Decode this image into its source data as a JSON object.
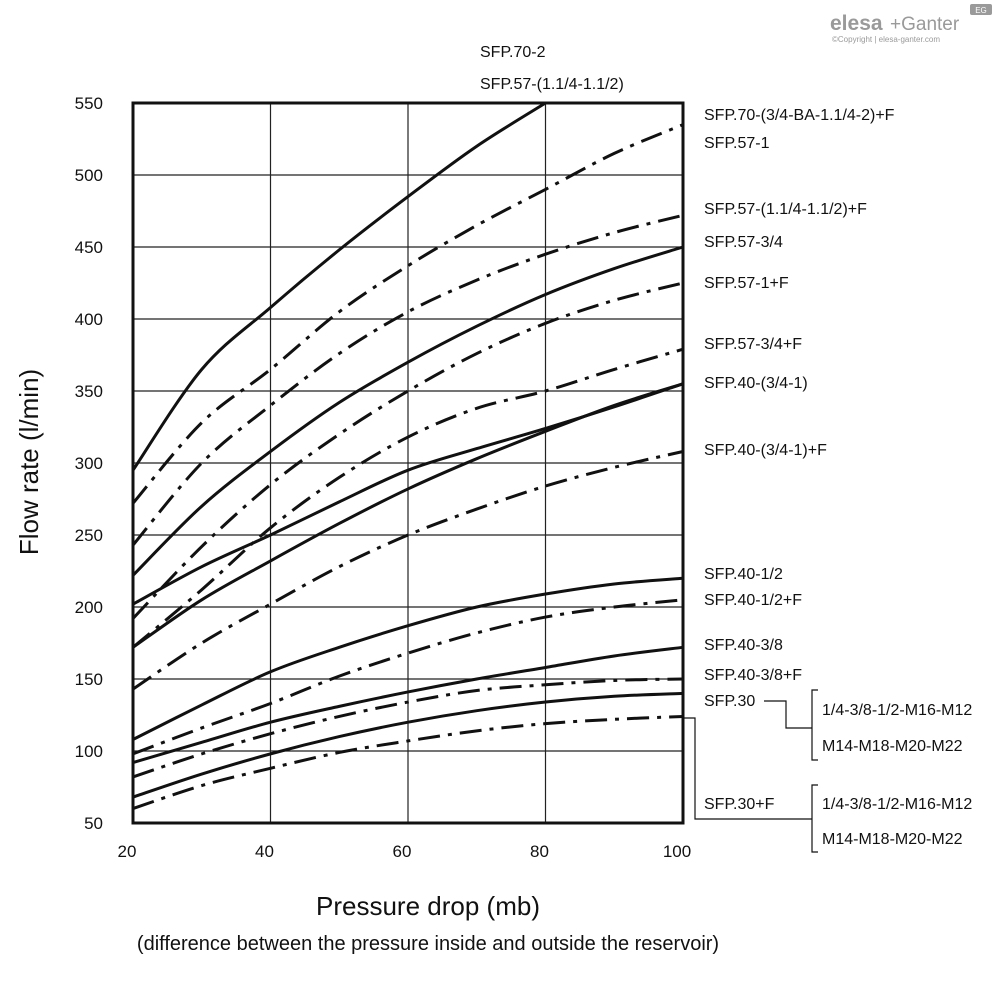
{
  "brand": {
    "name_left": "elesa",
    "name_right": "+Ganter",
    "copyright": "©Copyright | elesa-ganter.com",
    "badge": "EG"
  },
  "chart_data": {
    "type": "line",
    "xlabel": "Pressure drop (mb)",
    "xlabel_note": "(difference between the pressure inside and outside the reservoir)",
    "ylabel": "Flow rate (l/min)",
    "xlim": [
      20,
      100
    ],
    "ylim": [
      50,
      550
    ],
    "x_ticks": [
      20,
      40,
      60,
      80,
      100
    ],
    "y_ticks": [
      50,
      100,
      150,
      200,
      250,
      300,
      350,
      400,
      450,
      500,
      550
    ],
    "grid": true,
    "top_labels": [
      "SFP.70-2",
      "SFP.57-(1.1/4-1.1/2)"
    ],
    "series": [
      {
        "name": "SFP.70-2",
        "style": "solid",
        "x": [
          20,
          30,
          40,
          50,
          60,
          70,
          80
        ],
        "y": [
          295,
          365,
          408,
          448,
          485,
          520,
          550
        ]
      },
      {
        "name": "SFP.70-(3/4-BA-1.1/4-2)+F",
        "style": "dashdot",
        "x": [
          20,
          30,
          40,
          50,
          60,
          70,
          80,
          90,
          100
        ],
        "y": [
          272,
          328,
          365,
          405,
          437,
          465,
          490,
          515,
          535
        ]
      },
      {
        "name": "SFP.57-(1.1/4-1.1/2)+F",
        "style": "dashdot",
        "x": [
          20,
          30,
          40,
          50,
          60,
          70,
          80,
          90,
          100
        ],
        "y": [
          243,
          300,
          340,
          376,
          405,
          427,
          445,
          460,
          472
        ]
      },
      {
        "name": "SFP.57-1",
        "style": "solid",
        "x": [
          20,
          30,
          40,
          50,
          60,
          70,
          80,
          90,
          100
        ],
        "y": [
          222,
          270,
          308,
          342,
          370,
          395,
          417,
          435,
          450
        ]
      },
      {
        "name": "SFP.57-1+F",
        "style": "dashdot",
        "x": [
          20,
          30,
          40,
          50,
          60,
          70,
          80,
          90,
          100
        ],
        "y": [
          192,
          242,
          285,
          320,
          350,
          376,
          397,
          413,
          425
        ]
      },
      {
        "name": "SFP.57-3/4",
        "style": "solid",
        "x": [
          20,
          30,
          40,
          50,
          60,
          70,
          80,
          90,
          100
        ],
        "y": [
          202,
          228,
          250,
          273,
          295,
          310,
          324,
          339,
          355
        ]
      },
      {
        "name": "SFP.57-3/4+F",
        "style": "dashdot",
        "x": [
          20,
          30,
          40,
          50,
          60,
          70,
          80,
          90,
          100
        ],
        "y": [
          172,
          212,
          255,
          290,
          318,
          338,
          350,
          365,
          379
        ]
      },
      {
        "name": "SFP.40-(3/4-1)",
        "style": "solid",
        "x": [
          20,
          30,
          40,
          50,
          60,
          70,
          80,
          90,
          100
        ],
        "y": [
          172,
          205,
          232,
          258,
          282,
          303,
          322,
          340,
          355
        ]
      },
      {
        "name": "SFP.40-(3/4-1)+F",
        "style": "dashdot",
        "x": [
          20,
          30,
          40,
          50,
          60,
          70,
          80,
          90,
          100
        ],
        "y": [
          143,
          175,
          202,
          228,
          250,
          268,
          284,
          297,
          308
        ]
      },
      {
        "name": "SFP.40-1/2",
        "style": "solid",
        "x": [
          20,
          30,
          40,
          50,
          60,
          70,
          80,
          90,
          100
        ],
        "y": [
          108,
          132,
          155,
          172,
          187,
          200,
          209,
          216,
          220
        ]
      },
      {
        "name": "SFP.40-1/2+F",
        "style": "dashdot",
        "x": [
          20,
          30,
          40,
          50,
          60,
          70,
          80,
          90,
          100
        ],
        "y": [
          98,
          116,
          133,
          152,
          168,
          182,
          193,
          200,
          205
        ]
      },
      {
        "name": "SFP.40-3/8",
        "style": "solid",
        "x": [
          20,
          30,
          40,
          50,
          60,
          70,
          80,
          90,
          100
        ],
        "y": [
          92,
          106,
          120,
          131,
          141,
          150,
          158,
          166,
          172
        ]
      },
      {
        "name": "SFP.40-3/8+F",
        "style": "dashdot",
        "x": [
          20,
          30,
          40,
          50,
          60,
          70,
          80,
          90,
          100
        ],
        "y": [
          82,
          98,
          112,
          124,
          134,
          142,
          146,
          149,
          150
        ]
      },
      {
        "name": "SFP.30 1/4-3/8-1/2-M16-M12",
        "style": "solid",
        "x": [
          20,
          30,
          40,
          50,
          60,
          70,
          80,
          90,
          100
        ],
        "y": [
          68,
          84,
          98,
          110,
          120,
          128,
          134,
          138,
          140
        ]
      },
      {
        "name": "SFP.30+F 1/4-3/8-1/2-M16-M12",
        "style": "dashdot",
        "x": [
          20,
          30,
          40,
          50,
          60,
          70,
          80,
          90,
          100
        ],
        "y": [
          60,
          76,
          88,
          99,
          107,
          114,
          119,
          122,
          124
        ]
      }
    ],
    "right_labels": [
      "SFP.70-(3/4-BA-1.1/4-2)+F",
      "SFP.57-1",
      "SFP.57-(1.1/4-1.1/2)+F",
      "SFP.57-3/4",
      "SFP.57-1+F",
      "SFP.57-3/4+F",
      "SFP.40-(3/4-1)",
      "SFP.40-(3/4-1)+F",
      "SFP.40-1/2",
      "SFP.40-1/2+F",
      "SFP.40-3/8",
      "SFP.40-3/8+F",
      "SFP.30",
      "SFP.30+F"
    ],
    "group_labels": {
      "sfp30": [
        "1/4-3/8-1/2-M16-M12",
        "M14-M18-M20-M22"
      ],
      "sfp30f": [
        "1/4-3/8-1/2-M16-M12",
        "M14-M18-M20-M22"
      ]
    }
  }
}
